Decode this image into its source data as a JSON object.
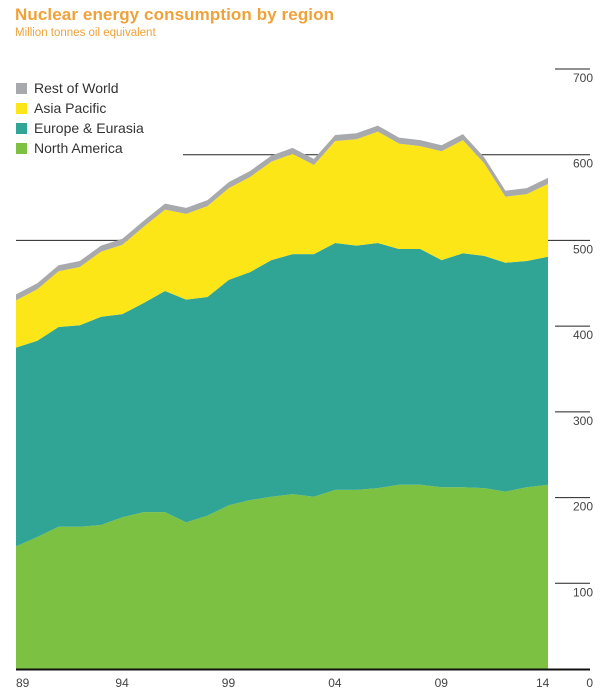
{
  "chart_data": {
    "type": "area",
    "stacked": true,
    "title": "Nuclear energy consumption by region",
    "subtitle": "Million tonnes oil equivalent",
    "xlabel": "",
    "ylabel": "",
    "x": [
      1989,
      1990,
      1991,
      1992,
      1993,
      1994,
      1995,
      1996,
      1997,
      1998,
      1999,
      2000,
      2001,
      2002,
      2003,
      2004,
      2005,
      2006,
      2007,
      2008,
      2009,
      2010,
      2011,
      2012,
      2013,
      2014
    ],
    "x_tick_labels": [
      "89",
      "94",
      "99",
      "04",
      "09",
      "14"
    ],
    "x_tick_years": [
      1989,
      1994,
      1999,
      2004,
      2009,
      2014
    ],
    "y_ticks": [
      0,
      100,
      200,
      300,
      400,
      500,
      600,
      700
    ],
    "ylim": [
      0,
      700
    ],
    "y_axis_side": "right",
    "grid": true,
    "legend_position": "top-left",
    "series": [
      {
        "name": "North America",
        "color": "#7dc142",
        "values": [
          143,
          154,
          166,
          166,
          168,
          177,
          183,
          183,
          171,
          179,
          191,
          197,
          201,
          204,
          201,
          209,
          209,
          211,
          215,
          215,
          212,
          212,
          211,
          207,
          212,
          215
        ]
      },
      {
        "name": "Europe & Eurasia",
        "color": "#30a595",
        "values": [
          232,
          229,
          233,
          235,
          243,
          237,
          244,
          258,
          260,
          255,
          263,
          266,
          276,
          280,
          283,
          288,
          285,
          286,
          275,
          275,
          265,
          273,
          271,
          267,
          264,
          266
        ]
      },
      {
        "name": "Asia Pacific",
        "color": "#fde617",
        "values": [
          55,
          60,
          65,
          68,
          76,
          81,
          89,
          95,
          100,
          106,
          107,
          111,
          115,
          117,
          104,
          119,
          124,
          130,
          123,
          120,
          127,
          132,
          108,
          77,
          78,
          85
        ]
      },
      {
        "name": "Rest of World",
        "color": "#a7a9ac",
        "values": [
          7,
          7,
          7,
          7,
          7,
          7,
          7,
          7,
          7,
          7,
          7,
          7,
          7,
          7,
          7,
          7,
          7,
          7,
          7,
          7,
          7,
          7,
          7,
          7,
          7,
          7
        ]
      }
    ]
  },
  "legend": {
    "items": [
      {
        "label": "Rest of World",
        "color": "#a7a9ac"
      },
      {
        "label": "Asia Pacific",
        "color": "#fde617"
      },
      {
        "label": "Europe & Eurasia",
        "color": "#30a595"
      },
      {
        "label": "North America",
        "color": "#7dc142"
      }
    ]
  }
}
